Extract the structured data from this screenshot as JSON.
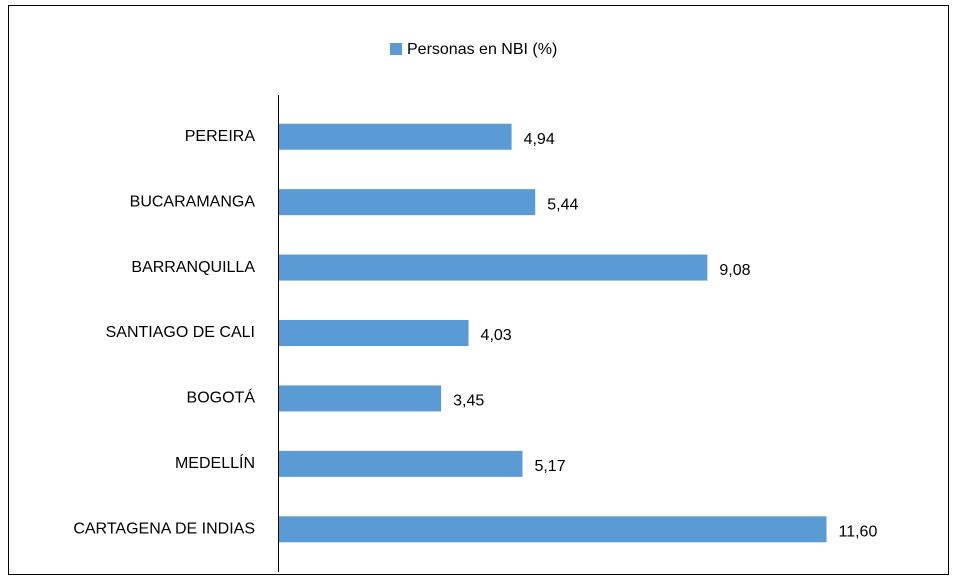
{
  "chart_data": {
    "type": "hbar",
    "series": [
      {
        "name": "Personas en NBI (%)",
        "color": "#5b9bd5",
        "values": [
          4.94,
          5.44,
          9.08,
          4.03,
          3.45,
          5.17,
          11.6
        ],
        "value_labels": [
          "4,94",
          "5,44",
          "9,08",
          "4,03",
          "3,45",
          "5,17",
          "11,60"
        ]
      }
    ],
    "categories": [
      "PEREIRA",
      "BUCARAMANGA",
      "BARRANQUILLA",
      "SANTIAGO DE CALI",
      "BOGOTÁ",
      "MEDELLÍN",
      "CARTAGENA DE INDIAS"
    ],
    "xlim": [
      0,
      14
    ],
    "legend": "top"
  }
}
